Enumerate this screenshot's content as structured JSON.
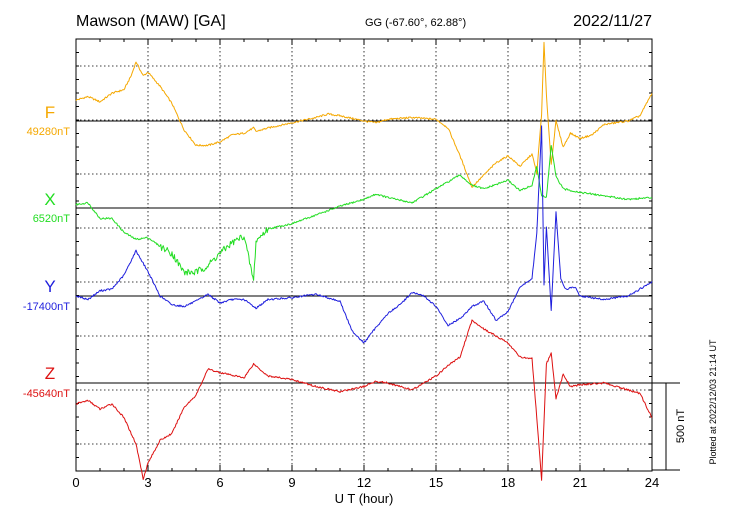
{
  "header": {
    "station": "Mawson (MAW)  [GA]",
    "coords": "GG (-67.60°,  62.88°)",
    "date": "2022/11/27"
  },
  "footer": {
    "plotted": "Plotted at 2022/12/03 21:14 UT"
  },
  "chart_data": {
    "type": "line",
    "title": "Mawson (MAW)  [GA]",
    "xlabel": "U T (hour)",
    "ylabel": "",
    "xlim": [
      0,
      24
    ],
    "x_ticks": [
      "0",
      "3",
      "6",
      "9",
      "12",
      "15",
      "18",
      "21",
      "24"
    ],
    "grid": true,
    "scale_bar": {
      "value": 500,
      "label": "500 nT"
    },
    "series": [
      {
        "name": "F",
        "baseline_label": "49280nT",
        "baseline_nT": 49280,
        "color": "#f5a800",
        "x": [
          0,
          0.5,
          1,
          1.5,
          2,
          2.3,
          2.5,
          2.8,
          3,
          3.5,
          4,
          4.5,
          5,
          5.5,
          6,
          6.5,
          7,
          7.4,
          7.5,
          8,
          9,
          10,
          10.5,
          11,
          12,
          12.5,
          13,
          14,
          15,
          15.5,
          16,
          16.5,
          17,
          17.5,
          18,
          18.5,
          19,
          19.2,
          19.4,
          19.5,
          19.6,
          19.8,
          20,
          20.3,
          20.6,
          21,
          21.5,
          22,
          23,
          23.5,
          24
        ],
        "values": [
          120,
          140,
          110,
          160,
          180,
          260,
          340,
          260,
          280,
          200,
          100,
          -50,
          -140,
          -140,
          -120,
          -80,
          -70,
          -40,
          -60,
          -40,
          -10,
          20,
          40,
          30,
          0,
          -10,
          10,
          20,
          10,
          -40,
          -200,
          -380,
          -310,
          -240,
          -200,
          -260,
          -190,
          -300,
          40,
          450,
          150,
          -250,
          0,
          -150,
          -70,
          -100,
          -80,
          -20,
          0,
          30,
          160
        ]
      },
      {
        "name": "X",
        "baseline_label": "6520nT",
        "baseline_nT": 6520,
        "color": "#22dd22",
        "x": [
          0,
          0.5,
          1,
          1.5,
          2,
          2.5,
          3,
          3.5,
          4,
          4.5,
          5,
          5.5,
          6,
          6.5,
          7,
          7.4,
          7.5,
          8,
          9,
          10,
          11,
          12,
          12.5,
          13,
          14,
          15,
          16,
          16.5,
          17,
          18,
          18.5,
          19,
          19.2,
          19.4,
          19.6,
          19.8,
          20,
          20.3,
          21,
          22,
          23,
          24
        ],
        "values": [
          20,
          30,
          -60,
          -60,
          -140,
          -180,
          -170,
          -220,
          -260,
          -370,
          -370,
          -330,
          -260,
          -200,
          -160,
          -420,
          -190,
          -120,
          -90,
          -40,
          10,
          50,
          80,
          60,
          30,
          110,
          190,
          130,
          110,
          160,
          100,
          130,
          240,
          70,
          60,
          360,
          180,
          110,
          90,
          70,
          50,
          60
        ]
      },
      {
        "name": "Y",
        "baseline_label": "-17400nT",
        "baseline_nT": -17400,
        "color": "#1f1fdd",
        "x": [
          0,
          0.5,
          1,
          1.5,
          2,
          2.5,
          3,
          3.5,
          4,
          4.5,
          5,
          5.5,
          6,
          6.5,
          7,
          7.5,
          8,
          9,
          10,
          11,
          11.5,
          12,
          12.5,
          13,
          13.5,
          14,
          14.5,
          15,
          15.5,
          16,
          16.5,
          17,
          17.5,
          18,
          18.5,
          19,
          19.2,
          19.4,
          19.5,
          19.6,
          19.8,
          20,
          20.2,
          20.4,
          20.8,
          21,
          22,
          23,
          24
        ],
        "values": [
          0,
          -20,
          30,
          40,
          120,
          260,
          140,
          0,
          -50,
          -60,
          -30,
          10,
          -40,
          -20,
          -20,
          -70,
          -20,
          -10,
          10,
          -30,
          -200,
          -270,
          -180,
          -100,
          -50,
          20,
          0,
          -60,
          -170,
          -130,
          -60,
          -30,
          -140,
          -90,
          50,
          100,
          360,
          980,
          60,
          400,
          -80,
          480,
          100,
          40,
          50,
          0,
          -20,
          0,
          80
        ]
      },
      {
        "name": "Z",
        "baseline_label": "-45640nT",
        "baseline_nT": -45640,
        "color": "#dd1111",
        "x": [
          0,
          0.5,
          1,
          1.5,
          2,
          2.5,
          2.8,
          3,
          3.5,
          4,
          4.5,
          5,
          5.5,
          6,
          7,
          7.4,
          8,
          9,
          10,
          11,
          12,
          12.5,
          13,
          14,
          15,
          15.5,
          16,
          16.5,
          17,
          18,
          18.5,
          19,
          19.2,
          19.4,
          19.6,
          19.8,
          20,
          20.3,
          20.6,
          21,
          22,
          23,
          23.5,
          24
        ],
        "values": [
          -120,
          -100,
          -150,
          -120,
          -200,
          -350,
          -550,
          -460,
          -330,
          -290,
          -140,
          -70,
          80,
          60,
          30,
          110,
          40,
          20,
          -20,
          -50,
          -20,
          10,
          0,
          -40,
          40,
          100,
          150,
          360,
          310,
          230,
          150,
          140,
          -200,
          -560,
          110,
          170,
          -90,
          50,
          -20,
          -10,
          0,
          -40,
          -60,
          -200
        ]
      }
    ]
  }
}
